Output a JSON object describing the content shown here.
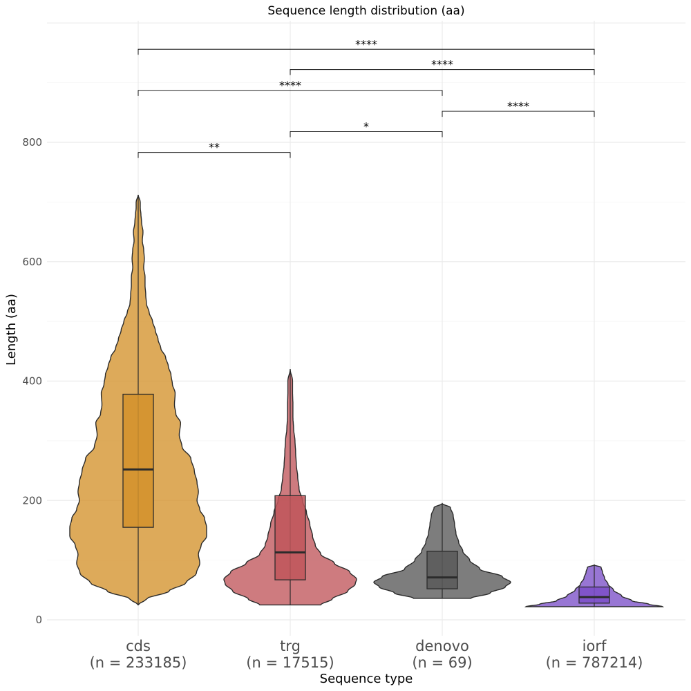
{
  "chart_data": {
    "type": "violin",
    "title": "Sequence length distribution (aa)",
    "xlabel": "Sequence type",
    "ylabel": "Length (aa)",
    "ylim": [
      -10,
      1010
    ],
    "yticks": [
      0,
      200,
      400,
      600,
      800
    ],
    "grid": true,
    "categories": [
      {
        "name": "cds",
        "n_label": "(n = 233185)",
        "color": "#D4922C",
        "min": 25,
        "max": 712,
        "q1": 155,
        "median": 252,
        "q3": 378,
        "density": [
          [
            25,
            0.0
          ],
          [
            35,
            0.12
          ],
          [
            48,
            0.45
          ],
          [
            62,
            0.7
          ],
          [
            78,
            0.85
          ],
          [
            95,
            0.9
          ],
          [
            110,
            0.88
          ],
          [
            125,
            0.92
          ],
          [
            140,
            1.0
          ],
          [
            155,
            1.0
          ],
          [
            170,
            0.97
          ],
          [
            185,
            0.9
          ],
          [
            200,
            0.86
          ],
          [
            215,
            0.88
          ],
          [
            230,
            0.86
          ],
          [
            250,
            0.82
          ],
          [
            270,
            0.77
          ],
          [
            290,
            0.64
          ],
          [
            310,
            0.6
          ],
          [
            330,
            0.62
          ],
          [
            345,
            0.55
          ],
          [
            360,
            0.53
          ],
          [
            380,
            0.54
          ],
          [
            395,
            0.5
          ],
          [
            410,
            0.48
          ],
          [
            425,
            0.44
          ],
          [
            440,
            0.4
          ],
          [
            455,
            0.33
          ],
          [
            470,
            0.29
          ],
          [
            485,
            0.25
          ],
          [
            500,
            0.21
          ],
          [
            515,
            0.16
          ],
          [
            530,
            0.12
          ],
          [
            545,
            0.11
          ],
          [
            560,
            0.1
          ],
          [
            575,
            0.1
          ],
          [
            590,
            0.08
          ],
          [
            605,
            0.09
          ],
          [
            620,
            0.08
          ],
          [
            635,
            0.06
          ],
          [
            650,
            0.07
          ],
          [
            665,
            0.05
          ],
          [
            680,
            0.04
          ],
          [
            690,
            0.03
          ],
          [
            700,
            0.03
          ],
          [
            712,
            0.0
          ]
        ]
      },
      {
        "name": "trg",
        "n_label": "(n = 17515)",
        "color": "#C0565B",
        "min": 25,
        "max": 420,
        "q1": 67,
        "median": 113,
        "q3": 208,
        "density": [
          [
            25,
            0.45
          ],
          [
            35,
            0.62
          ],
          [
            48,
            0.85
          ],
          [
            60,
            0.96
          ],
          [
            68,
            0.98
          ],
          [
            80,
            0.88
          ],
          [
            95,
            0.65
          ],
          [
            110,
            0.45
          ],
          [
            125,
            0.37
          ],
          [
            140,
            0.33
          ],
          [
            160,
            0.29
          ],
          [
            180,
            0.24
          ],
          [
            200,
            0.18
          ],
          [
            220,
            0.13
          ],
          [
            240,
            0.11
          ],
          [
            260,
            0.09
          ],
          [
            280,
            0.08
          ],
          [
            300,
            0.07
          ],
          [
            320,
            0.05
          ],
          [
            340,
            0.04
          ],
          [
            360,
            0.04
          ],
          [
            380,
            0.035
          ],
          [
            400,
            0.035
          ],
          [
            420,
            0.0
          ]
        ]
      },
      {
        "name": "denovo",
        "n_label": "(n = 69)",
        "color": "#595959",
        "min": 36,
        "max": 195,
        "q1": 52,
        "median": 71,
        "q3": 115,
        "density": [
          [
            36,
            0.42
          ],
          [
            45,
            0.7
          ],
          [
            55,
            0.92
          ],
          [
            63,
            1.0
          ],
          [
            72,
            0.88
          ],
          [
            85,
            0.55
          ],
          [
            100,
            0.4
          ],
          [
            115,
            0.3
          ],
          [
            130,
            0.24
          ],
          [
            145,
            0.2
          ],
          [
            160,
            0.18
          ],
          [
            175,
            0.16
          ],
          [
            188,
            0.12
          ],
          [
            195,
            0.0
          ]
        ]
      },
      {
        "name": "iorf",
        "n_label": "(n = 787214)",
        "color": "#7B4FC8",
        "min": 22,
        "max": 92,
        "q1": 28,
        "median": 38,
        "q3": 55,
        "density": [
          [
            22,
            1.0
          ],
          [
            26,
            0.8
          ],
          [
            32,
            0.55
          ],
          [
            40,
            0.4
          ],
          [
            50,
            0.28
          ],
          [
            60,
            0.2
          ],
          [
            70,
            0.15
          ],
          [
            80,
            0.12
          ],
          [
            88,
            0.1
          ],
          [
            92,
            0.0
          ]
        ]
      }
    ],
    "comparisons": [
      {
        "from": "cds",
        "to": "trg",
        "y": 783,
        "label": "**"
      },
      {
        "from": "trg",
        "to": "denovo",
        "y": 818,
        "label": "*"
      },
      {
        "from": "denovo",
        "to": "iorf",
        "y": 852,
        "label": "****"
      },
      {
        "from": "cds",
        "to": "denovo",
        "y": 887,
        "label": "****"
      },
      {
        "from": "trg",
        "to": "iorf",
        "y": 922,
        "label": "****"
      },
      {
        "from": "cds",
        "to": "iorf",
        "y": 956,
        "label": "****"
      }
    ]
  }
}
